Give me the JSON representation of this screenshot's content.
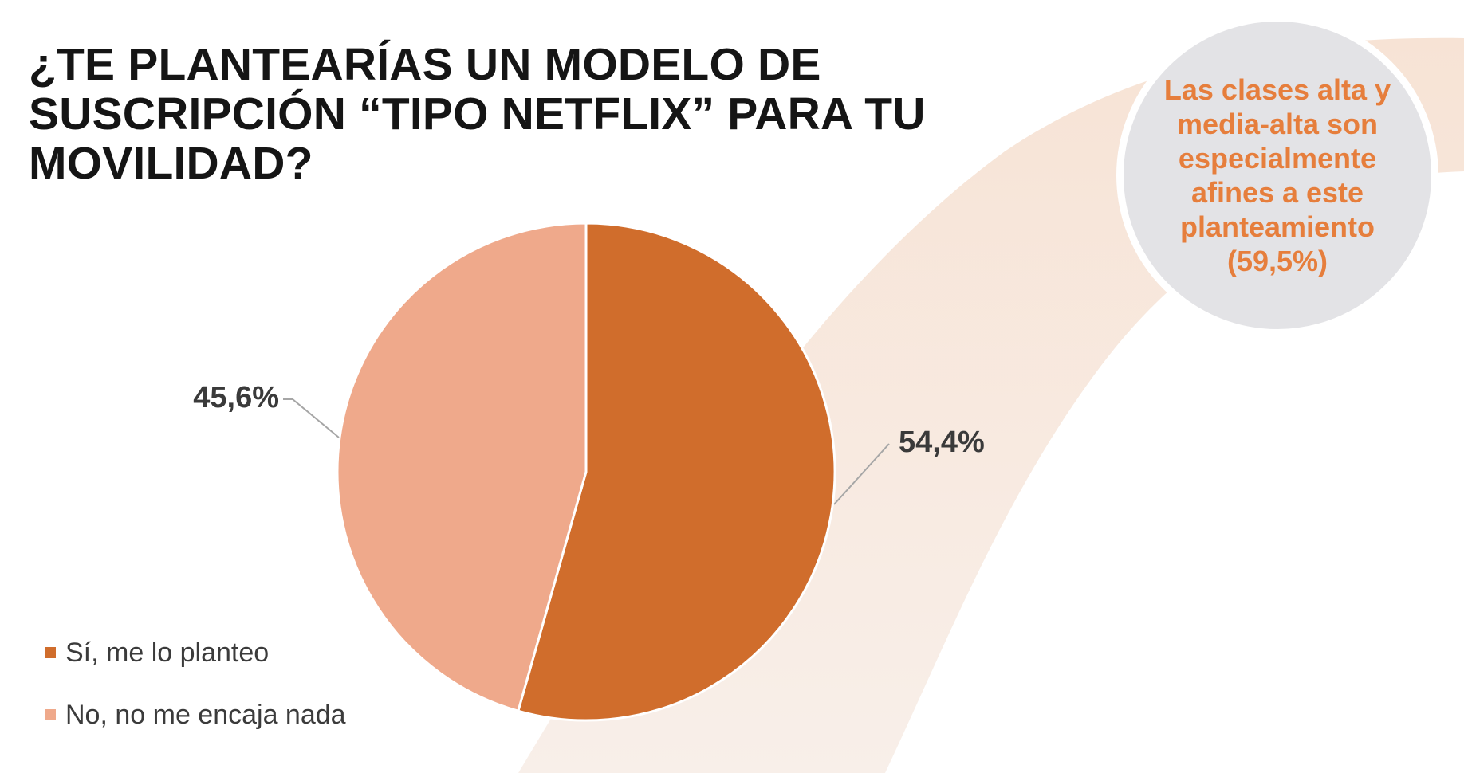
{
  "title": {
    "lines": [
      "¿TE PLANTEARÍAS UN MODELO DE",
      "SUSCRIPCIÓN “TIPO NETFLIX” PARA TU",
      "MOVILIDAD?"
    ]
  },
  "callout": {
    "text": "Las clases alta y media-alta son especialmente afines a este planteamiento (59,5%)"
  },
  "chart_data": {
    "type": "pie",
    "title": "¿TE PLANTEARÍAS UN MODELO DE SUSCRIPCIÓN “TIPO NETFLIX” PARA TU MOVILIDAD?",
    "slices": [
      {
        "label": "Sí, me lo planteo",
        "value": 54.4,
        "display": "54,4%",
        "color": "#d06d2c"
      },
      {
        "label": "No, no me encaja nada",
        "value": 45.6,
        "display": "45,6%",
        "color": "#efa98b"
      }
    ],
    "legend_position": "bottom-left"
  },
  "colors": {
    "accent": "#e67e3c",
    "callout_bg": "#e3e3e6",
    "decor_arc": "#f6e6db"
  }
}
